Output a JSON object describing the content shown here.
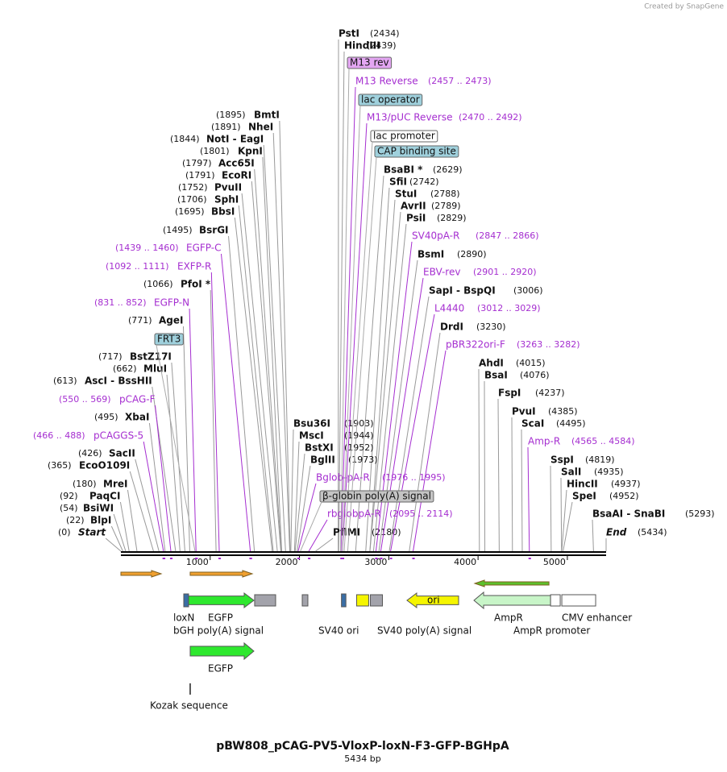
{
  "header": {
    "watermark": "Created by SnapGene"
  },
  "map": {
    "title": "pBW808_pCAG-PV5-VloxP-loxN-F3-GFP-BGHpA",
    "length": 5434,
    "length_label": "5434 bp",
    "ruler_ticks": [
      1000,
      2000,
      3000,
      4000,
      5000
    ],
    "enzymes": [
      {
        "name": "PstI",
        "position": 2434,
        "position_label": "(2434)"
      },
      {
        "name": "HindIII",
        "position": 2439,
        "position_label": "(2439)"
      },
      {
        "name": "BsaBI *",
        "position": 2629,
        "position_label": "(2629)"
      },
      {
        "name": "SfiI",
        "position": 2742,
        "position_label": "(2742)"
      },
      {
        "name": "StuI",
        "position": 2788,
        "position_label": "(2788)"
      },
      {
        "name": "AvrII",
        "position": 2789,
        "position_label": "(2789)"
      },
      {
        "name": "PsiI",
        "position": 2829,
        "position_label": "(2829)"
      },
      {
        "name": "BsmI",
        "position": 2890,
        "position_label": "(2890)"
      },
      {
        "name": "SapI - BspQI",
        "position": 3006,
        "position_label": "(3006)"
      },
      {
        "name": "DrdI",
        "position": 3230,
        "position_label": "(3230)"
      },
      {
        "name": "AhdI",
        "position": 4015,
        "position_label": "(4015)"
      },
      {
        "name": "BsaI",
        "position": 4076,
        "position_label": "(4076)"
      },
      {
        "name": "FspI",
        "position": 4237,
        "position_label": "(4237)"
      },
      {
        "name": "PvuI",
        "position": 4385,
        "position_label": "(4385)"
      },
      {
        "name": "ScaI",
        "position": 4495,
        "position_label": "(4495)"
      },
      {
        "name": "SspI",
        "position": 4819,
        "position_label": "(4819)"
      },
      {
        "name": "SalI",
        "position": 4935,
        "position_label": "(4935)"
      },
      {
        "name": "HincII",
        "position": 4937,
        "position_label": "(4937)"
      },
      {
        "name": "SpeI",
        "position": 4952,
        "position_label": "(4952)"
      },
      {
        "name": "BsaAI - SnaBI",
        "position": 5293,
        "position_label": "(5293)"
      },
      {
        "name": "End",
        "position": 5434,
        "position_label": "(5434)"
      },
      {
        "name": "Bsu36I",
        "position": 1903,
        "position_label": "(1903)"
      },
      {
        "name": "MscI",
        "position": 1944,
        "position_label": "(1944)"
      },
      {
        "name": "BstXI",
        "position": 1952,
        "position_label": "(1952)"
      },
      {
        "name": "BglII",
        "position": 1973,
        "position_label": "(1973)"
      },
      {
        "name": "PflMI",
        "position": 2180,
        "position_label": "(2180)"
      },
      {
        "name": "BmtI",
        "position": 1895,
        "position_label": "(1895)"
      },
      {
        "name": "NheI",
        "position": 1891,
        "position_label": "(1891)"
      },
      {
        "name": "NotI - EagI",
        "position": 1844,
        "position_label": "(1844)"
      },
      {
        "name": "KpnI",
        "position": 1801,
        "position_label": "(1801)"
      },
      {
        "name": "Acc65I",
        "position": 1797,
        "position_label": "(1797)"
      },
      {
        "name": "EcoRI",
        "position": 1791,
        "position_label": "(1791)"
      },
      {
        "name": "PvuII",
        "position": 1752,
        "position_label": "(1752)"
      },
      {
        "name": "SphI",
        "position": 1706,
        "position_label": "(1706)"
      },
      {
        "name": "BbsI",
        "position": 1695,
        "position_label": "(1695)"
      },
      {
        "name": "BsrGI",
        "position": 1495,
        "position_label": "(1495)"
      },
      {
        "name": "PfoI *",
        "position": 1066,
        "position_label": "(1066)"
      },
      {
        "name": "AgeI",
        "position": 771,
        "position_label": "(771)"
      },
      {
        "name": "BstZ17I",
        "position": 717,
        "position_label": "(717)"
      },
      {
        "name": "MluI",
        "position": 662,
        "position_label": "(662)"
      },
      {
        "name": "AscI - BssHII",
        "position": 613,
        "position_label": "(613)"
      },
      {
        "name": "XbaI",
        "position": 495,
        "position_label": "(495)"
      },
      {
        "name": "SacII",
        "position": 426,
        "position_label": "(426)"
      },
      {
        "name": "EcoO109I",
        "position": 365,
        "position_label": "(365)"
      },
      {
        "name": "MreI",
        "position": 180,
        "position_label": "(180)"
      },
      {
        "name": "PaqCI",
        "position": 92,
        "position_label": "(92)"
      },
      {
        "name": "BsiWI",
        "position": 54,
        "position_label": "(54)"
      },
      {
        "name": "BlpI",
        "position": 22,
        "position_label": "(22)"
      },
      {
        "name": "Start",
        "position": 0,
        "position_label": "(0)"
      }
    ],
    "primers": [
      {
        "name": "M13 Reverse",
        "start": 2457,
        "end": 2473,
        "range_label": "(2457 .. 2473)"
      },
      {
        "name": "M13/pUC Reverse",
        "start": 2470,
        "end": 2492,
        "range_label": "(2470 .. 2492)"
      },
      {
        "name": "SV40pA-R",
        "start": 2847,
        "end": 2866,
        "range_label": "(2847 .. 2866)"
      },
      {
        "name": "EBV-rev",
        "start": 2901,
        "end": 2920,
        "range_label": "(2901 .. 2920)"
      },
      {
        "name": "L4440",
        "start": 3012,
        "end": 3029,
        "range_label": "(3012 .. 3029)"
      },
      {
        "name": "pBR322ori-F",
        "start": 3263,
        "end": 3282,
        "range_label": "(3263 .. 3282)"
      },
      {
        "name": "Amp-R",
        "start": 4565,
        "end": 4584,
        "range_label": "(4565 .. 4584)"
      },
      {
        "name": "Bglob-pA-R",
        "start": 1976,
        "end": 1995,
        "range_label": "(1976 .. 1995)"
      },
      {
        "name": "rbglobpA-R",
        "start": 2095,
        "end": 2114,
        "range_label": "(2095 .. 2114)"
      },
      {
        "name": "EGFP-C",
        "start": 1439,
        "end": 1460,
        "range_label": "(1439 .. 1460)"
      },
      {
        "name": "EXFP-R",
        "start": 1092,
        "end": 1111,
        "range_label": "(1092 .. 1111)"
      },
      {
        "name": "EGFP-N",
        "start": 831,
        "end": 852,
        "range_label": "(831 .. 852)"
      },
      {
        "name": "pCAG-F",
        "start": 550,
        "end": 569,
        "range_label": "(550 .. 569)"
      },
      {
        "name": "pCAGGS-5",
        "start": 466,
        "end": 488,
        "range_label": "(466 .. 488)"
      }
    ],
    "boxed_features": [
      {
        "name": "M13 rev",
        "position": 2460,
        "color": "#e3a6f2"
      },
      {
        "name": "lac operator",
        "position": 2480,
        "color": "#9fd0dc"
      },
      {
        "name": "lac promoter",
        "position": 2500,
        "color": "#ffffff"
      },
      {
        "name": "CAP binding site",
        "position": 2540,
        "color": "#9fd0dc"
      },
      {
        "name": "FRT3",
        "position": 830,
        "color": "#9fd0dc"
      },
      {
        "name": "β-globin poly(A) signal",
        "position": 2010,
        "color": "#c4c4c4"
      }
    ],
    "features": [
      {
        "name": "loxN",
        "start": 704,
        "end": 758,
        "direction": 0,
        "color": "#3a6ea5"
      },
      {
        "name": "EGFP",
        "start": 758,
        "end": 1489,
        "direction": 1,
        "color": "#2ee82e"
      },
      {
        "name": "bGH poly(A) signal",
        "start": 1498,
        "end": 1733,
        "direction": 0,
        "color": "#a3a3ab"
      },
      {
        "start": 2031,
        "end": 2094,
        "direction": 0,
        "color": "#a3a3ab"
      },
      {
        "start": 2470,
        "end": 2520,
        "direction": 0,
        "color": "#3a6ea5"
      },
      {
        "name": "SV40 ori",
        "start": 2640,
        "end": 2775,
        "direction": 0,
        "color": "#f5f500"
      },
      {
        "name": "SV40 poly(A) signal",
        "start": 2794,
        "end": 2929,
        "direction": 0,
        "color": "#a3a3ab"
      },
      {
        "name": "ori",
        "start": 3204,
        "end": 3782,
        "direction": -1,
        "color": "#f5f500"
      },
      {
        "name": "AmpR",
        "start": 3954,
        "end": 4812,
        "direction": -1,
        "color": "#c8f5c8"
      },
      {
        "name": "AmpR promoter",
        "start": 4812,
        "end": 4920,
        "direction": 0,
        "color": "#ffffff"
      },
      {
        "name": "CMV enhancer",
        "start": 4938,
        "end": 5317,
        "direction": 0,
        "color": "#ffffff"
      },
      {
        "name": "EGFP",
        "start": 776,
        "end": 1489,
        "direction": 1,
        "color": "#2ee82e"
      },
      {
        "name": "Kozak sequence",
        "start": 776,
        "end": 782,
        "direction": 0,
        "color": "#222222"
      },
      {
        "start": 0,
        "end": 451,
        "direction": 1,
        "color": "#f0a030"
      },
      {
        "start": 776,
        "end": 1471,
        "direction": 1,
        "color": "#f0a030"
      },
      {
        "start": 3963,
        "end": 4794,
        "direction": -1,
        "color": "#5cc02c"
      }
    ]
  }
}
